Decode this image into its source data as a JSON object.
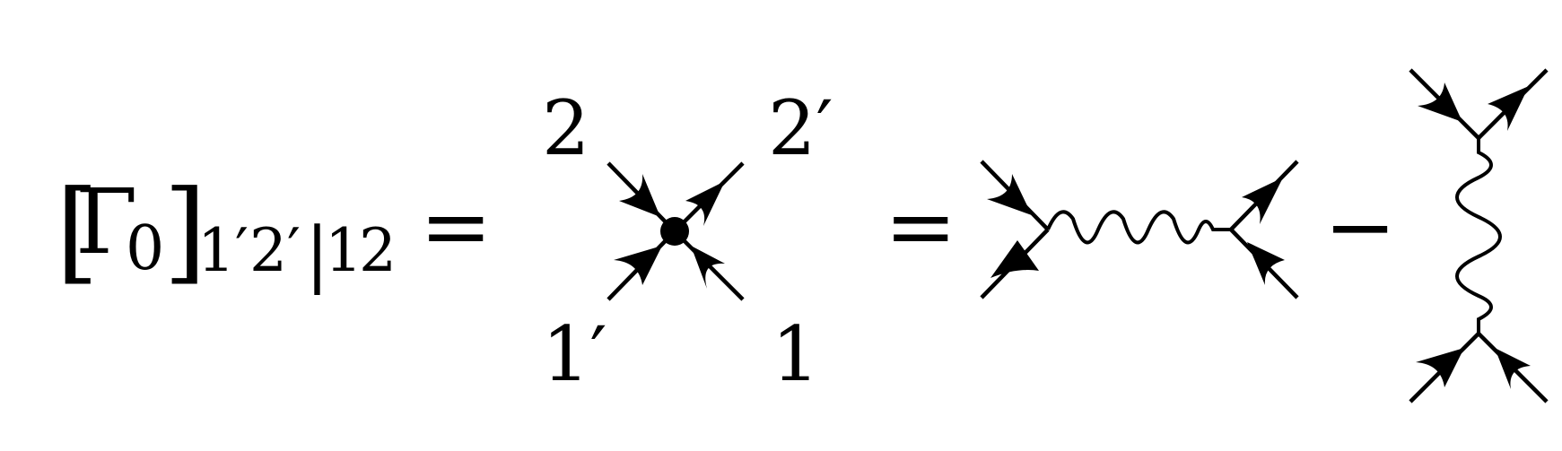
{
  "lhs": {
    "open_bracket": "[",
    "gamma": "Γ",
    "gamma_sub": "0",
    "close_bracket": "]",
    "index_1p": "1′",
    "index_2p": "2′",
    "bar": "|",
    "index_1": "1",
    "index_2": "2"
  },
  "equals_1": "=",
  "equals_2": "=",
  "minus": "−",
  "vertex_labels": {
    "top_left": "2",
    "top_right": "2′",
    "bottom_left": "1′",
    "bottom_right": "1"
  },
  "colors": {
    "ink": "#000000",
    "background": "#ffffff"
  }
}
